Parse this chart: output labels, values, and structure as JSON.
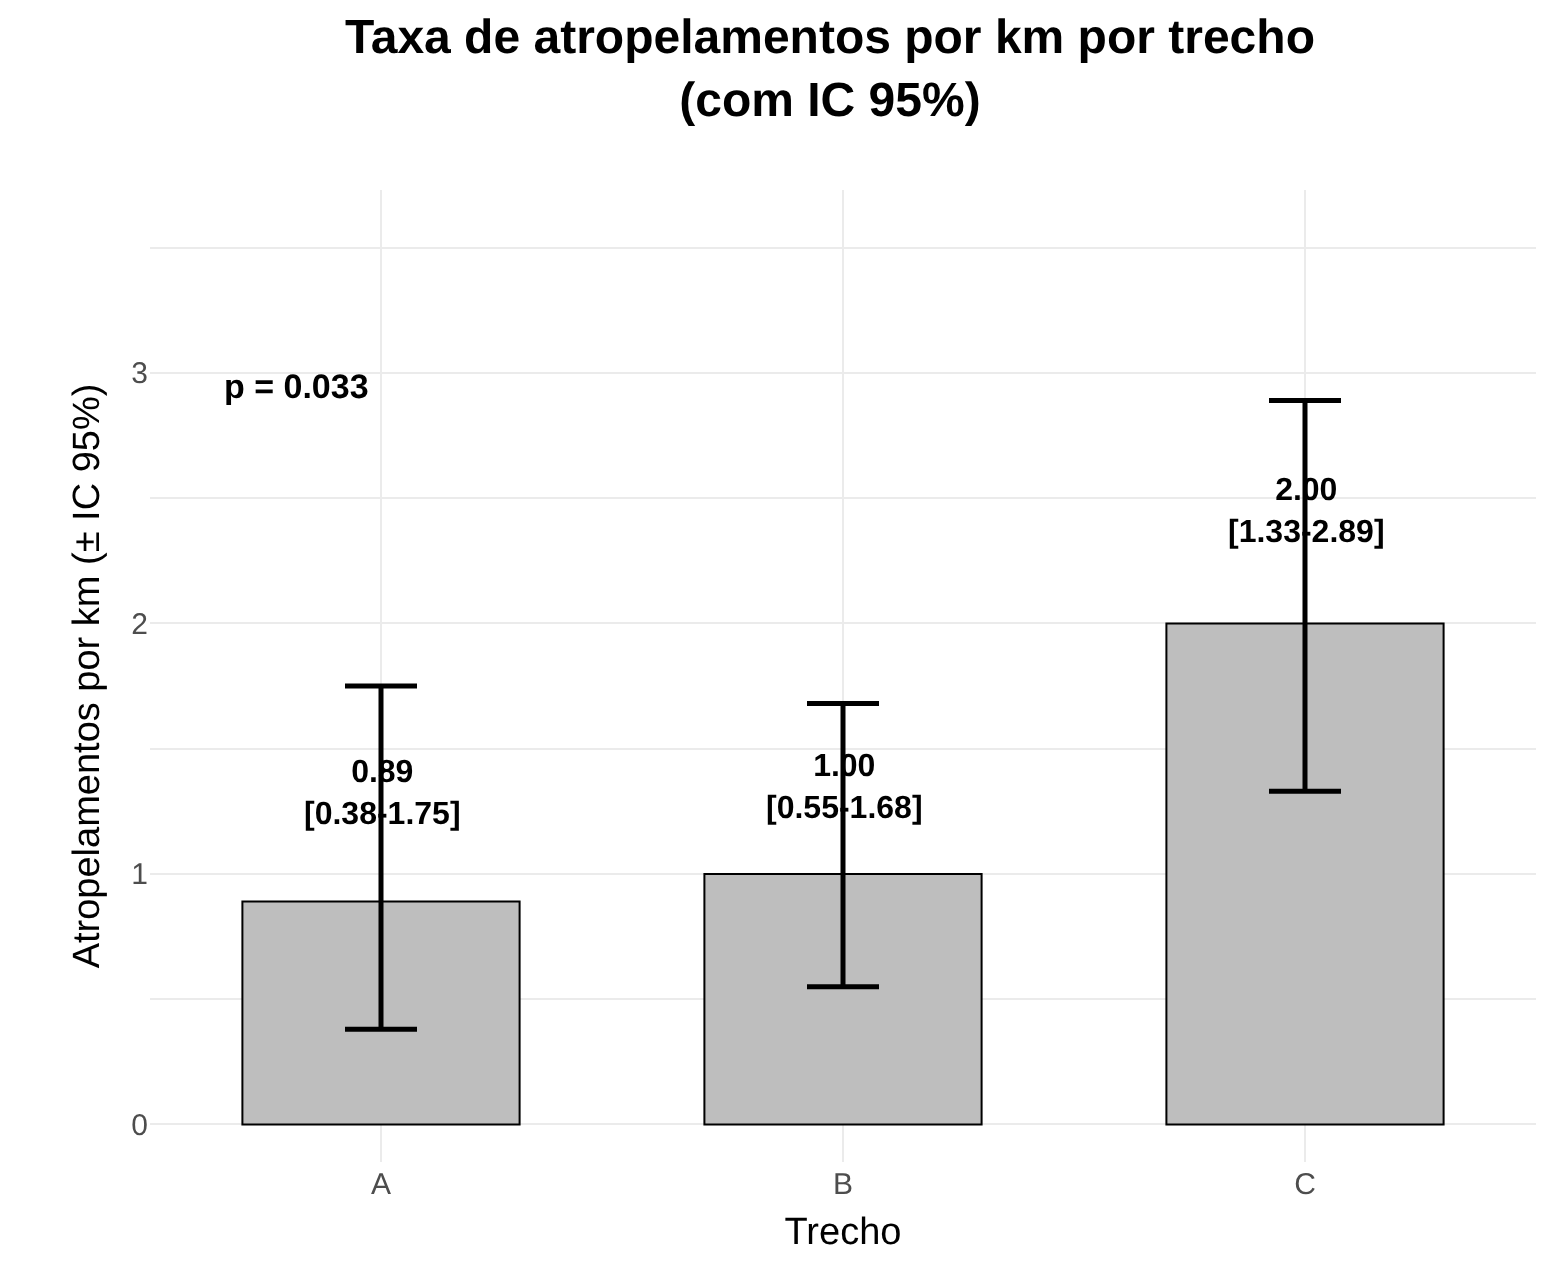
{
  "chart_data": {
    "type": "bar",
    "title": "Taxa de atropelamentos por km por trecho\n(com IC 95%)",
    "xlabel": "Trecho",
    "ylabel": "Atropelamentos por km (± IC 95%)",
    "categories": [
      "A",
      "B",
      "C"
    ],
    "values": [
      0.89,
      1.0,
      2.0
    ],
    "color": "#bebebe",
    "errors": [
      [
        0.38,
        1.75
      ],
      [
        0.55,
        1.68
      ],
      [
        1.33,
        2.89
      ]
    ],
    "value_labels": [
      "0.89\n[0.38-1.75]",
      "1.00\n[0.55-1.68]",
      "2.00\n[1.33-2.89]"
    ],
    "annotations": [
      "p = 0.033"
    ],
    "ylim": [
      -0.15,
      3.73
    ],
    "yticks": [
      0,
      {
        "value": 0.5,
        "label": null
      },
      1,
      {
        "value": 1.5,
        "label": null
      },
      2,
      {
        "value": 2.5,
        "label": null
      },
      3,
      {
        "value": 3.5,
        "label": null
      }
    ],
    "grid": true
  }
}
